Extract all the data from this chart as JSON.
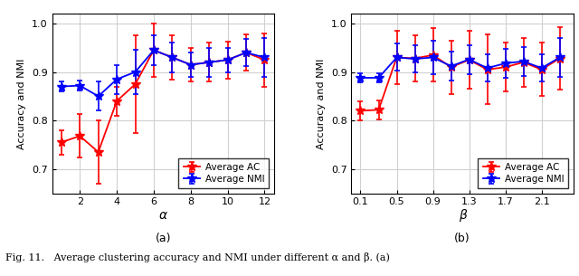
{
  "left": {
    "alpha_x": [
      1,
      2,
      3,
      4,
      5,
      6,
      7,
      8,
      9,
      10,
      11,
      12
    ],
    "ac_y": [
      0.755,
      0.768,
      0.735,
      0.84,
      0.875,
      0.945,
      0.93,
      0.915,
      0.92,
      0.925,
      0.94,
      0.925
    ],
    "ac_err": [
      0.025,
      0.045,
      0.065,
      0.03,
      0.1,
      0.055,
      0.045,
      0.035,
      0.04,
      0.038,
      0.038,
      0.055
    ],
    "nmi_y": [
      0.87,
      0.872,
      0.85,
      0.885,
      0.9,
      0.945,
      0.93,
      0.915,
      0.92,
      0.925,
      0.94,
      0.93
    ],
    "nmi_err": [
      0.01,
      0.01,
      0.03,
      0.03,
      0.045,
      0.03,
      0.03,
      0.025,
      0.03,
      0.025,
      0.028,
      0.04
    ],
    "xlim": [
      0.5,
      12.5
    ],
    "ylim": [
      0.65,
      1.02
    ],
    "xticks": [
      2,
      4,
      6,
      8,
      10,
      12
    ],
    "yticks": [
      0.7,
      0.8,
      0.9,
      1.0
    ],
    "xlabel": "α",
    "ylabel": "Accuracy and NMI",
    "label_ac": "Average AC",
    "label_nmi": "Average NMI",
    "sublabel": "(a)"
  },
  "right": {
    "beta_x": [
      0.1,
      0.3,
      0.5,
      0.7,
      0.9,
      1.1,
      1.3,
      1.5,
      1.7,
      1.9,
      2.1,
      2.3
    ],
    "ac_y": [
      0.82,
      0.822,
      0.93,
      0.928,
      0.935,
      0.91,
      0.925,
      0.905,
      0.91,
      0.92,
      0.905,
      0.928
    ],
    "ac_err": [
      0.02,
      0.02,
      0.055,
      0.048,
      0.055,
      0.055,
      0.06,
      0.072,
      0.05,
      0.05,
      0.055,
      0.065
    ],
    "nmi_y": [
      0.888,
      0.888,
      0.93,
      0.927,
      0.93,
      0.912,
      0.926,
      0.908,
      0.918,
      0.922,
      0.908,
      0.93
    ],
    "nmi_err": [
      0.01,
      0.01,
      0.028,
      0.028,
      0.035,
      0.03,
      0.03,
      0.028,
      0.03,
      0.03,
      0.028,
      0.04
    ],
    "xlim": [
      0.0,
      2.45
    ],
    "ylim": [
      0.65,
      1.02
    ],
    "xticks": [
      0.1,
      0.5,
      0.9,
      1.3,
      1.7,
      2.1
    ],
    "yticks": [
      0.7,
      0.8,
      0.9,
      1.0
    ],
    "xlabel": "β",
    "ylabel": "Accuracy and NMI",
    "label_ac": "Average AC",
    "label_nmi": "Average NMI",
    "sublabel": "(b)"
  },
  "color_ac": "#FF0000",
  "color_nmi": "#0000FF",
  "fig_caption": "Fig. 11.   Average clustering accuracy and NMI under different α and β. (a)",
  "background_color": "#ffffff",
  "grid_color": "#d0d0d0"
}
